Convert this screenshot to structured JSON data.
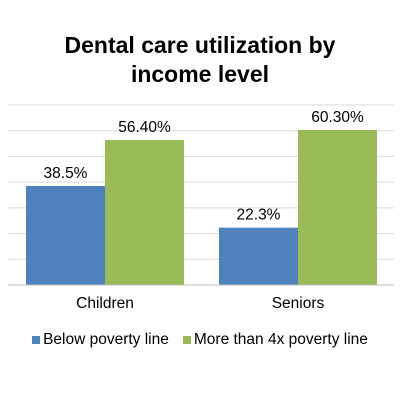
{
  "chart_data": {
    "type": "bar",
    "title_lines": [
      "Dental care utilization by",
      "income level"
    ],
    "categories": [
      "Children",
      "Seniors"
    ],
    "series": [
      {
        "name": "Below poverty line",
        "color": "#4f81bd",
        "values": [
          38.5,
          22.3
        ],
        "labels": [
          "38.5%",
          "22.3%"
        ]
      },
      {
        "name": "More than 4x poverty line",
        "color": "#9bbb59",
        "values": [
          56.4,
          60.3
        ],
        "labels": [
          "56.40%",
          "60.30%"
        ]
      }
    ],
    "ylim": [
      0,
      70
    ],
    "grid": true,
    "legend": "bottom"
  }
}
